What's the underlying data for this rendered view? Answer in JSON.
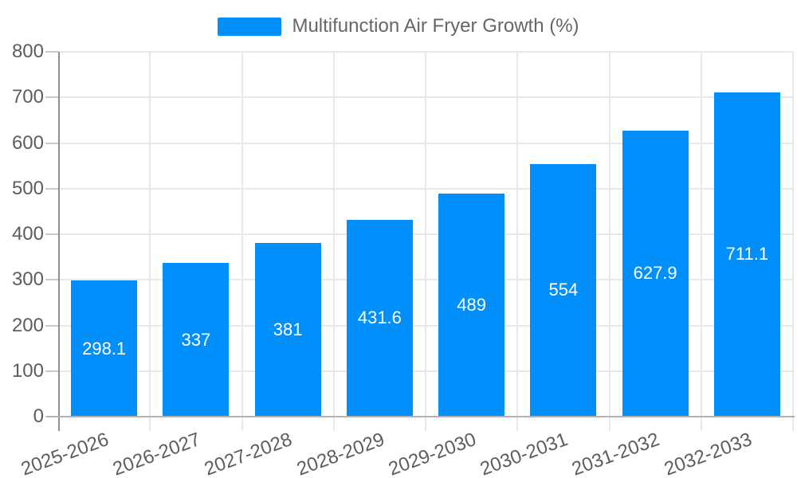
{
  "legend": {
    "label": "Multifunction Air Fryer Growth (%)"
  },
  "colors": {
    "bar": "#008FFB",
    "bar_label_text": "#ffffff",
    "axis_text": "#5d5d5d",
    "legend_text": "#666666",
    "gridline": "#e8e8e8",
    "axis_line_y": "#8f8f8f",
    "axis_line_x": "#b2b2b2"
  },
  "chart_data": {
    "type": "bar",
    "title": "Multifunction Air Fryer Growth (%)",
    "categories": [
      "2025-2026",
      "2026-2027",
      "2027-2028",
      "2028-2029",
      "2029-2030",
      "2030-2031",
      "2031-2032",
      "2032-2033"
    ],
    "series": [
      {
        "name": "Multifunction Air Fryer Growth (%)",
        "values": [
          298.1,
          337,
          381,
          431.6,
          489,
          554,
          627.9,
          711.1
        ]
      }
    ],
    "data_labels": [
      "298.1",
      "337",
      "381",
      "431.6",
      "489",
      "554",
      "627.9",
      "711.1"
    ],
    "xlabel": "",
    "ylabel": "",
    "ylim": [
      0,
      800
    ],
    "yticks": [
      0,
      100,
      200,
      300,
      400,
      500,
      600,
      700,
      800
    ],
    "grid": true,
    "legend_position": "top"
  }
}
